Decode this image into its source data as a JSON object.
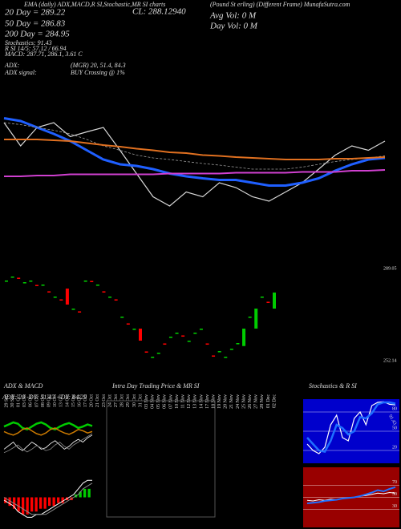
{
  "header": {
    "top_line": "EMA (daily) ADX,MACD,R SI,Stochastic,MR SI charts",
    "close": "CL: 288.12940",
    "source": "(Pound St erling) (Different Frame) MunafaSutra.com",
    "avg_vol": "Avg Vol: 0 M",
    "day_vol": "Day Vol: 0 M",
    "ema20": "20 Day = 289.22",
    "ema50": "50 Day = 286.83",
    "ema200": "200 Day = 284.95",
    "stochastics": "Stochastics: 91.43",
    "rsi": "R SI 14/5: 57.12 / 66.94",
    "macd": "MACD: 287.71, 286.1, 3.61 C",
    "adx_label": "ADX:",
    "adx_value": "(MGR) 20, 51.4, 84.3",
    "adx_signal_label": "ADX signal:",
    "adx_signal_value": "BUY Crossing @ 1%"
  },
  "chart_data": [
    {
      "type": "line",
      "ylim": [
        270,
        300
      ],
      "series": [
        {
          "color": "#d8d8d8",
          "values": [
            295.4,
            289.6,
            294.2,
            295.4,
            291.9,
            293.1,
            294.2,
            288.5,
            282.7,
            276.9,
            274.6,
            278.1,
            276.9,
            280.4,
            279.2,
            276.9,
            275.8,
            278.1,
            280.4,
            283.8,
            287.3,
            289.6,
            288.5,
            290.8
          ]
        },
        {
          "color": "#1f5fff",
          "values": [
            296.5,
            295.8,
            294.2,
            292.6,
            290.8,
            288.5,
            286.2,
            285.0,
            284.6,
            283.8,
            282.7,
            282.0,
            281.5,
            281.1,
            281.1,
            280.4,
            279.7,
            279.7,
            280.4,
            281.5,
            283.4,
            285.0,
            286.2,
            286.6
          ]
        },
        {
          "color": "#9a9a9a",
          "dashed": true,
          "values": [
            295.4,
            294.9,
            294.2,
            293.5,
            292.6,
            291.2,
            289.6,
            288.5,
            287.3,
            286.6,
            286.2,
            285.7,
            285.2,
            284.8,
            284.3,
            283.8,
            283.8,
            283.8,
            284.3,
            285.0,
            285.7,
            286.2,
            286.6,
            287.1
          ]
        },
        {
          "color": "#e07020",
          "values": [
            291.2,
            291.2,
            291.2,
            291.0,
            290.8,
            290.3,
            289.8,
            289.4,
            288.9,
            288.5,
            288.0,
            287.8,
            287.3,
            287.1,
            286.8,
            286.6,
            286.4,
            286.2,
            286.2,
            286.2,
            286.4,
            286.4,
            286.6,
            286.8
          ]
        },
        {
          "color": "#d040d0",
          "values": [
            282.0,
            282.0,
            282.2,
            282.2,
            282.5,
            282.5,
            282.5,
            282.5,
            282.5,
            282.5,
            282.7,
            282.7,
            282.7,
            282.7,
            282.9,
            282.9,
            282.9,
            282.9,
            283.1,
            283.1,
            283.1,
            283.4,
            283.4,
            283.6
          ]
        }
      ]
    },
    {
      "type": "candle",
      "ylim": [
        252.14,
        289.05
      ],
      "yticks": [
        289.05,
        252.14
      ],
      "up_color": "#00cc00",
      "down_color": "#ff0000",
      "categories": [
        "29 Sep",
        "30 Sep",
        "01 Oct",
        "03 Oct",
        "06 Oct",
        "07 Oct",
        "08 Oct",
        "09 Oct",
        "10 Oct",
        "13 Oct",
        "14 Oct",
        "15 Oct",
        "16 Oct",
        "17 Oct",
        "20 Oct",
        "21 Oct",
        "23 Oct",
        "24 Oct",
        "27 Oct",
        "28 Oct",
        "29 Oct",
        "30 Oct",
        "31 Oct",
        "03 Nov",
        "04 Nov",
        "05 Nov",
        "06 Nov",
        "07 Nov",
        "10 Nov",
        "11 Nov",
        "12 Nov",
        "13 Nov",
        "14 Nov",
        "17 Nov",
        "18 Nov",
        "19 Nov",
        "20 Nov",
        "21 Nov",
        "24 Nov",
        "25 Nov",
        "26 Nov",
        "27 Nov",
        "28 Nov",
        "01 Dec",
        "02 Dec"
      ],
      "open": [
        283.74,
        285.34,
        285.38,
        283.09,
        283.74,
        282.49,
        282.13,
        279.92,
        277.32,
        276.71,
        281.0,
        272.5,
        271.9,
        283.74,
        284.09,
        282.13,
        279.92,
        277.32,
        276.71,
        269.29,
        267.08,
        264.48,
        264.98,
        255.85,
        253.24,
        254.85,
        259.05,
        261.26,
        262.87,
        262.26,
        259.66,
        262.87,
        264.48,
        259.05,
        254.24,
        255.49,
        253.24,
        256.45,
        258.7,
        258.0,
        269.29,
        265.0,
        277.32,
        275.75,
        273.0
      ],
      "close": [
        284.24,
        285.84,
        284.88,
        283.59,
        284.24,
        281.99,
        282.63,
        279.42,
        277.82,
        276.21,
        274.61,
        273.0,
        271.4,
        284.24,
        283.59,
        282.63,
        279.42,
        277.82,
        276.21,
        269.79,
        266.58,
        264.98,
        260.16,
        255.35,
        253.74,
        255.35,
        258.55,
        261.76,
        263.37,
        261.76,
        260.16,
        263.37,
        264.98,
        258.55,
        253.74,
        255.99,
        253.74,
        256.95,
        259.2,
        264.98,
        269.79,
        273.0,
        277.82,
        275.25,
        279.42
      ]
    },
    {
      "type": "line",
      "title": "ADX & MACD",
      "subtitle": "ADX: 20  -DY: 51.43  +DY: 84.29",
      "ylim": [
        0,
        100
      ],
      "series": [
        {
          "color": "#00cc00",
          "values": [
            52,
            55,
            58,
            56,
            50,
            48,
            52,
            56,
            58,
            55,
            50,
            48,
            52,
            55,
            57,
            54,
            50,
            52,
            55,
            53
          ]
        },
        {
          "color": "#cc7a00",
          "values": [
            45,
            42,
            40,
            43,
            48,
            50,
            46,
            42,
            40,
            43,
            48,
            50,
            46,
            43,
            41,
            44,
            48,
            46,
            43,
            45
          ]
        },
        {
          "color": "#ffffff",
          "values": [
            20,
            25,
            30,
            22,
            18,
            24,
            30,
            26,
            20,
            22,
            28,
            32,
            26,
            20,
            24,
            30,
            34,
            30,
            36,
            40
          ]
        },
        {
          "color": "#8a8a8a",
          "values": [
            15,
            18,
            22,
            26,
            20,
            16,
            20,
            25,
            22,
            18,
            20,
            26,
            30,
            24,
            20,
            26,
            30,
            34,
            38,
            42
          ]
        }
      ]
    },
    {
      "type": "macd",
      "ylim": [
        -10,
        10
      ],
      "up_color": "#00cc00",
      "down_color": "#ff0000",
      "histogram": [
        -2,
        -3,
        -4,
        -5,
        -6,
        -6,
        -5,
        -5,
        -4,
        -4,
        -3,
        -3,
        -2,
        -2,
        -1,
        -1,
        1,
        2,
        3,
        3
      ],
      "series": [
        {
          "color": "#ffffff",
          "values": [
            -1,
            -2,
            -3,
            -5,
            -6,
            -7,
            -7,
            -6,
            -6,
            -5,
            -4,
            -3,
            -2,
            -1,
            0,
            1,
            3,
            5,
            6,
            6
          ]
        },
        {
          "color": "#8a8a8a",
          "values": [
            0,
            -1,
            -2,
            -3,
            -4,
            -5,
            -6,
            -6,
            -6,
            -6,
            -5,
            -4,
            -3,
            -2,
            -1,
            0,
            1,
            3,
            4,
            5
          ]
        }
      ]
    },
    {
      "type": "line",
      "title": "Intra Day Trading Price & MR SI",
      "frame": true,
      "series": []
    },
    {
      "type": "line",
      "title": "Stochastics & R SI",
      "background": "#0000cc",
      "ylim": [
        0,
        100
      ],
      "yticks": [
        80,
        50,
        20
      ],
      "grid": true,
      "annotation": "91.43",
      "series": [
        {
          "color": "#ffffff",
          "values": [
            30,
            20,
            15,
            25,
            60,
            75,
            40,
            35,
            70,
            80,
            60,
            90,
            95,
            96,
            92,
            91
          ]
        },
        {
          "color": "#1f6fff",
          "values": [
            40,
            30,
            20,
            18,
            35,
            60,
            55,
            45,
            50,
            72,
            70,
            78,
            92,
            95,
            95,
            93
          ]
        }
      ]
    },
    {
      "type": "line",
      "background": "#990000",
      "ylim": [
        0,
        100
      ],
      "yticks": [
        70,
        50,
        30
      ],
      "grid": true,
      "series": [
        {
          "color": "#ffffff",
          "values": [
            45,
            44,
            46,
            45,
            47,
            46,
            48,
            49,
            50,
            52,
            53,
            55,
            57,
            56,
            58,
            57.12
          ]
        },
        {
          "color": "#1f6fff",
          "values": [
            40,
            41,
            42,
            44,
            45,
            46,
            48,
            49,
            50,
            52,
            55,
            58,
            62,
            60,
            64,
            66.94
          ]
        }
      ]
    }
  ]
}
